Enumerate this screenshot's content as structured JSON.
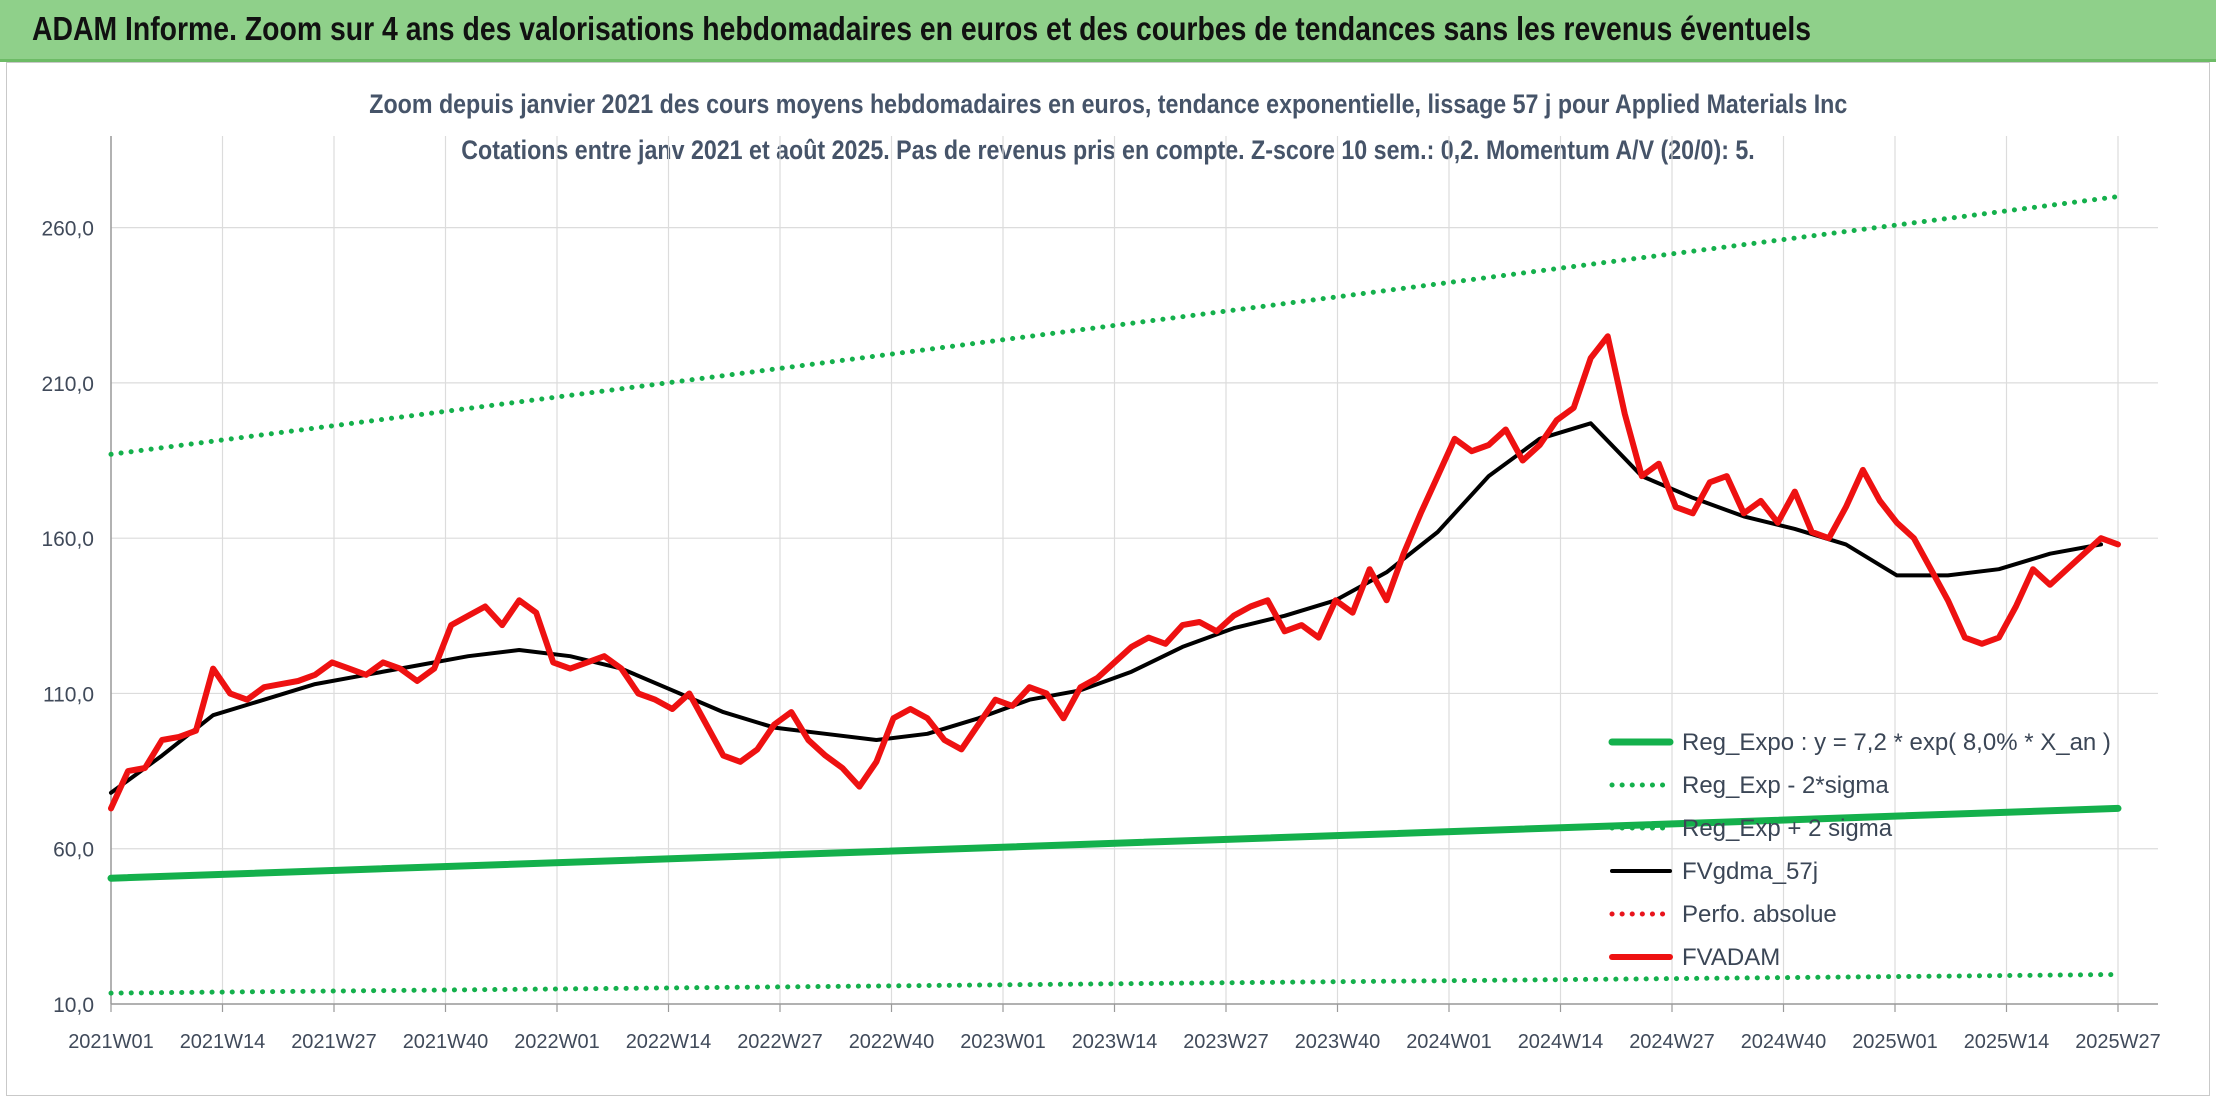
{
  "header": {
    "title": "ADAM Informe. Zoom sur 4 ans des valorisations hebdomadaires en euros et des courbes de tendances sans les revenus éventuels"
  },
  "chart_data": {
    "type": "line",
    "title_line1": "Zoom depuis janvier 2021 des cours moyens hebdomadaires en euros, tendance exponentielle, lissage 57 j pour Applied Materials Inc",
    "title_line2": "Cotations entre janv 2021 et août 2025. Pas de revenus pris en compte. Z-score 10 sem.: 0,2. Momentum A/V (20/0): 5.",
    "xlabel": "",
    "ylabel": "",
    "ylim": [
      10,
      285
    ],
    "ytick_values": [
      10,
      60,
      110,
      160,
      210,
      260
    ],
    "ytick_labels": [
      "10,0",
      "60,0",
      "110,0",
      "160,0",
      "210,0",
      "260,0"
    ],
    "x_categories": [
      "2021W01",
      "2021W14",
      "2021W27",
      "2021W40",
      "2022W01",
      "2022W14",
      "2022W27",
      "2022W40",
      "2023W01",
      "2023W14",
      "2023W27",
      "2023W40",
      "2024W01",
      "2024W14",
      "2024W27",
      "2024W40",
      "2025W01",
      "2025W14",
      "2025W27"
    ],
    "x_range_weeks": [
      0,
      236
    ],
    "grid": true,
    "legend_position": "bottom-right",
    "series": [
      {
        "name": "Reg_Expo : y = 7,2 * exp( 8,0% *  X_an )",
        "style": "solid-thick",
        "color": "#14b04c",
        "x": [
          0,
          236
        ],
        "values": [
          50.5,
          73.0
        ]
      },
      {
        "name": "Reg_Exp - 2*sigma",
        "style": "dotted",
        "color": "#14b04c",
        "x": [
          0,
          236
        ],
        "values": [
          13.5,
          19.5
        ]
      },
      {
        "name": "Reg_Exp + 2 sigma",
        "style": "dotted",
        "color": "#14b04c",
        "x": [
          0,
          236
        ],
        "values": [
          187.0,
          270.0
        ]
      },
      {
        "name": "FVgdma_57j",
        "style": "solid",
        "color": "#000000",
        "x": [
          0,
          6,
          12,
          18,
          24,
          30,
          36,
          42,
          48,
          54,
          60,
          66,
          72,
          78,
          84,
          90,
          96,
          102,
          108,
          114,
          120,
          126,
          132,
          138,
          144,
          150,
          156,
          162,
          168,
          174,
          180,
          186,
          192,
          198,
          204,
          210,
          216,
          222,
          228,
          234
        ],
        "values": [
          78,
          90,
          103,
          108,
          113,
          116,
          119,
          122,
          124,
          122,
          118,
          111,
          104,
          99,
          97,
          95,
          97,
          102,
          108,
          111,
          117,
          125,
          131,
          135,
          140,
          149,
          162,
          180,
          192,
          197,
          180,
          173,
          167,
          163,
          158,
          148,
          148,
          150,
          155,
          158
        ]
      },
      {
        "name": "Perfo. absolue",
        "style": "dotted",
        "color": "#e8141c",
        "x": [],
        "values": []
      },
      {
        "name": "FVADAM",
        "style": "solid-thick",
        "color": "#ee1111",
        "x": [
          0,
          2,
          4,
          6,
          8,
          10,
          12,
          14,
          16,
          18,
          20,
          22,
          24,
          26,
          28,
          30,
          32,
          34,
          36,
          38,
          40,
          42,
          44,
          46,
          48,
          50,
          52,
          54,
          56,
          58,
          60,
          62,
          64,
          66,
          68,
          70,
          72,
          74,
          76,
          78,
          80,
          82,
          84,
          86,
          88,
          90,
          92,
          94,
          96,
          98,
          100,
          102,
          104,
          106,
          108,
          110,
          112,
          114,
          116,
          118,
          120,
          122,
          124,
          126,
          128,
          130,
          132,
          134,
          136,
          138,
          140,
          142,
          144,
          146,
          148,
          150,
          152,
          154,
          156,
          158,
          160,
          162,
          164,
          166,
          168,
          170,
          172,
          174,
          176,
          178,
          180,
          182,
          184,
          186,
          188,
          190,
          192,
          194,
          196,
          198,
          200,
          202,
          204,
          206,
          208,
          210,
          212,
          214,
          216,
          218,
          220,
          222,
          224,
          226,
          228,
          230,
          232,
          234,
          236
        ],
        "values": [
          73,
          85,
          86,
          95,
          96,
          98,
          118,
          110,
          108,
          112,
          113,
          114,
          116,
          120,
          118,
          116,
          120,
          118,
          114,
          118,
          132,
          135,
          138,
          132,
          140,
          136,
          120,
          118,
          120,
          122,
          118,
          110,
          108,
          105,
          110,
          100,
          90,
          88,
          92,
          100,
          104,
          95,
          90,
          86,
          80,
          88,
          102,
          105,
          102,
          95,
          92,
          100,
          108,
          106,
          112,
          110,
          102,
          112,
          115,
          120,
          125,
          128,
          126,
          132,
          133,
          130,
          135,
          138,
          140,
          130,
          132,
          128,
          140,
          136,
          150,
          140,
          155,
          168,
          180,
          192,
          188,
          190,
          195,
          185,
          190,
          198,
          202,
          218,
          225,
          200,
          180,
          184,
          170,
          168,
          178,
          180,
          168,
          172,
          165,
          175,
          162,
          160,
          170,
          182,
          172,
          165,
          160,
          150,
          140,
          128,
          126,
          128,
          138,
          150,
          145,
          150,
          155,
          160,
          158
        ]
      }
    ]
  }
}
